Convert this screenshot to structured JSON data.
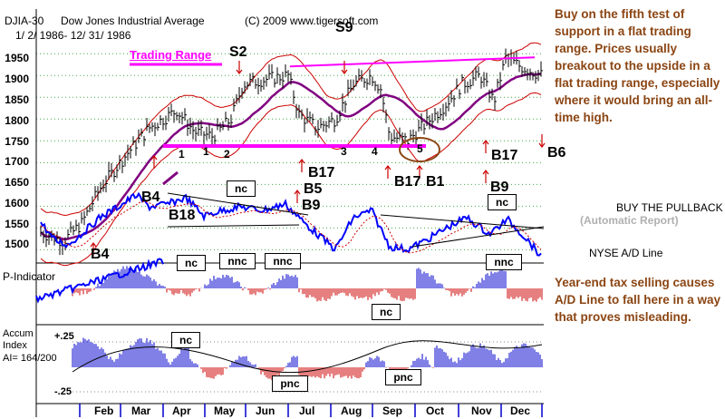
{
  "header": {
    "symbol": "DJIA-30",
    "name": "Dow Jones Industrial Average",
    "copyright": "(C) 2009 www.tigersoft.com",
    "date_range": "1/ 2/ 1986- 12/ 31/ 1986"
  },
  "commentary": {
    "main": "Buy on the fifth test of support in a flat trading range.  Prices usually breakout to the upside in a flat trading range, especially where it would bring an all-time high.",
    "yearend": "Year-end tax selling causes A/D Line to fall here in a way that proves misleading.",
    "buy_pullback": "BUY THE PULLBACK",
    "auto_report": "(Automatic Report)",
    "nyse_ad": "NYSE A/D Line"
  },
  "annotations": {
    "trading_range": "Trading Range",
    "signals": [
      "S2",
      "S9",
      "B17",
      "B5",
      "B9",
      "B4",
      "B18",
      "B17",
      "B1",
      "B17",
      "B9",
      "B6",
      "B4"
    ],
    "tests": [
      "1",
      "1",
      "2",
      "3",
      "4",
      "5"
    ],
    "boxes": [
      "nc",
      "nc",
      "nnc",
      "nnc",
      "nc",
      "nnc",
      "nc",
      "nc",
      "pnc",
      "pnc"
    ]
  },
  "panels": {
    "p_indicator": "P-Indicator",
    "accum_title": "Accum",
    "accum_sub": "Index",
    "accum_ai": "AI= 164/200",
    "accum_top": "+.25",
    "accum_bottom": "-.25"
  },
  "colors": {
    "price_bars": "#000000",
    "band": "#cc0000",
    "moving_avg": "#800080",
    "trading_range_line": "#ff00ff",
    "ad_line": "#0000ff",
    "ad_ma": "#cc0000",
    "pindicator_pos": "#0000cc",
    "pindicator_neg": "#cc0000",
    "commentary": "#8b4513"
  },
  "chart_data": {
    "type": "line",
    "title": "Dow Jones Industrial Average",
    "y_ticks": [
      1950,
      1900,
      1850,
      1800,
      1750,
      1700,
      1650,
      1600,
      1550,
      1500
    ],
    "ylim": [
      1480,
      1990
    ],
    "x_labels": [
      "Feb",
      "Mar",
      "Apr",
      "May",
      "Jun",
      "Jul",
      "Aug",
      "Sep",
      "Oct",
      "Nov",
      "Dec"
    ],
    "series": [
      {
        "x": [
          "Jan",
          "Feb",
          "Mar",
          "Apr",
          "May",
          "Jun",
          "Jul",
          "Aug",
          "Sep",
          "Oct",
          "Nov",
          "Dec"
        ],
        "values": [
          1530,
          1600,
          1730,
          1810,
          1760,
          1880,
          1790,
          1870,
          1770,
          1860,
          1900,
          1910
        ]
      }
    ],
    "trading_range_support": 1738,
    "trading_range_resistance": 1925
  }
}
